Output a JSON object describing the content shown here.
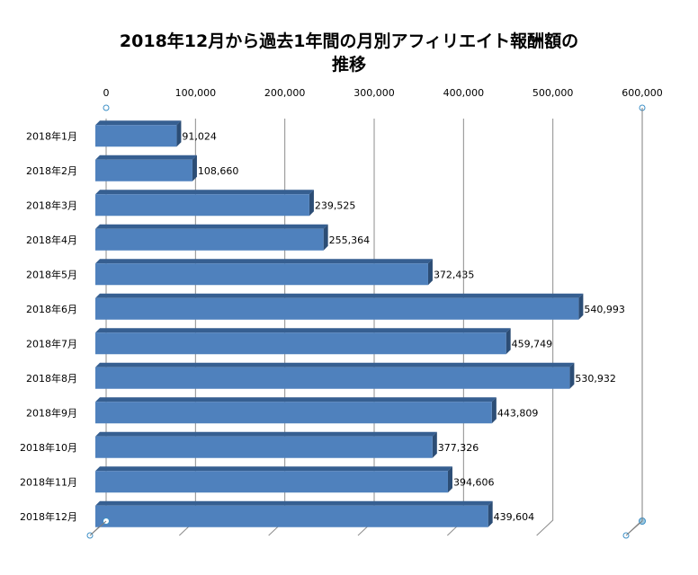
{
  "chart_data": {
    "type": "bar",
    "orientation": "horizontal",
    "title_line1": "2018年12月から過去1年間の月別アフィリエイト報酬額の",
    "title_line2": "推移",
    "categories": [
      "2018年1月",
      "2018年2月",
      "2018年3月",
      "2018年4月",
      "2018年5月",
      "2018年6月",
      "2018年7月",
      "2018年8月",
      "2018年9月",
      "2018年10月",
      "2018年11月",
      "2018年12月"
    ],
    "values": [
      91024,
      108660,
      239525,
      255364,
      372435,
      540993,
      459749,
      530932,
      443809,
      377326,
      394606,
      439604
    ],
    "data_labels": [
      "91,024",
      "108,660",
      "239,525",
      "255,364",
      "372,435",
      "540,993",
      "459,749",
      "530,932",
      "443,809",
      "377,326",
      "394,606",
      "439,604"
    ],
    "x_ticks": [
      "0",
      "100,000",
      "200,000",
      "300,000",
      "400,000",
      "500,000",
      "600,000"
    ],
    "xlim": [
      0,
      600000
    ],
    "grid": true,
    "axis_position": "top",
    "bar_color": "#4f81bd",
    "bar_top_color": "#365f91",
    "bar_side_color": "#2c4d75"
  }
}
